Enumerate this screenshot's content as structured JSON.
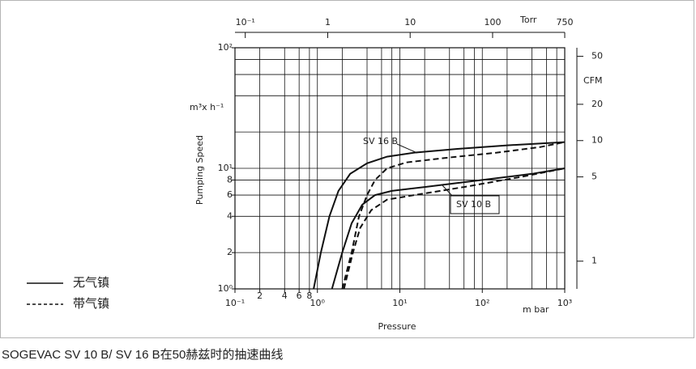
{
  "chart_data": {
    "type": "line",
    "x_label": "Pressure",
    "x_unit": "m bar",
    "y_label": "Pumping Speed",
    "y_unit": "m³x h⁻¹",
    "x2_unit": "Torr",
    "y2_unit": "CFM",
    "log_x": true,
    "log_y": true,
    "grid": true,
    "xlim": [
      0.1,
      1000
    ],
    "xticks": [
      {
        "value": 0.1,
        "label": "10⁻¹"
      },
      {
        "value": 0.2,
        "label": "2"
      },
      {
        "value": 0.4,
        "label": "4"
      },
      {
        "value": 0.6,
        "label": "6"
      },
      {
        "value": 0.8,
        "label": "8"
      },
      {
        "value": 1,
        "label": "10⁰"
      },
      {
        "value": 10,
        "label": "10¹"
      },
      {
        "value": 100,
        "label": "10²"
      },
      {
        "value": 1000,
        "label": "10³"
      }
    ],
    "xgrid": [
      0.1,
      0.2,
      0.4,
      0.6,
      0.8,
      1,
      2,
      4,
      6,
      8,
      10,
      20,
      40,
      60,
      80,
      100,
      200,
      400,
      600,
      800,
      1000
    ],
    "ylim": [
      1,
      100
    ],
    "yticks": [
      {
        "value": 1,
        "label": "10⁰"
      },
      2,
      4,
      6,
      8,
      {
        "value": 10,
        "label": "10¹"
      },
      {
        "value": 100,
        "label": "10²"
      }
    ],
    "ygrid": [
      1,
      2,
      4,
      6,
      8,
      10,
      20,
      40,
      60,
      80,
      100
    ],
    "x2lim": [
      0.075,
      750
    ],
    "x2ticks": [
      {
        "value": 0.1,
        "label": "10⁻¹"
      },
      1,
      10,
      100,
      750
    ],
    "y2lim": [
      0.589,
      58.9
    ],
    "y2ticks": [
      1,
      5,
      10,
      20,
      50
    ],
    "series": [
      {
        "name": "SV 16 B",
        "color": "#111111",
        "line_style": "solid",
        "x": [
          0.9,
          1.1,
          1.4,
          1.8,
          2.5,
          4,
          7,
          15,
          50,
          200,
          1000
        ],
        "values": [
          1,
          2,
          4,
          6.5,
          9,
          11,
          12.5,
          13.5,
          14.5,
          15.5,
          16.5
        ]
      },
      {
        "name": "SV 16 B",
        "color": "#111111",
        "line_style": "dashed",
        "x": [
          2,
          2.6,
          3.2,
          4,
          5,
          7,
          12,
          40,
          150,
          500,
          1000
        ],
        "values": [
          1,
          2,
          4,
          6,
          8,
          10,
          11.2,
          12.3,
          13.5,
          15,
          16.5
        ]
      },
      {
        "name": "SV 10 B",
        "color": "#111111",
        "line_style": "solid",
        "x": [
          1.5,
          2,
          2.6,
          3.5,
          5,
          8,
          20,
          100,
          400,
          1000
        ],
        "values": [
          1,
          2,
          3.5,
          5,
          6,
          6.5,
          7,
          8,
          9,
          10
        ]
      },
      {
        "name": "SV 10 B",
        "color": "#111111",
        "line_style": "dashed",
        "x": [
          2.1,
          2.7,
          3.3,
          4.5,
          7,
          15,
          60,
          300,
          1000
        ],
        "values": [
          1,
          2,
          3.2,
          4.5,
          5.5,
          6,
          7,
          8.5,
          10
        ]
      }
    ],
    "annotations": [
      "SV 16 B",
      "SV 10 B"
    ],
    "legend": [
      {
        "label": "无气镇",
        "line_style": "solid"
      },
      {
        "label": "带气镇",
        "line_style": "dashed"
      }
    ],
    "caption": "SOGEVAC SV 10 B/ SV 16 B在50赫兹时的抽速曲线"
  }
}
